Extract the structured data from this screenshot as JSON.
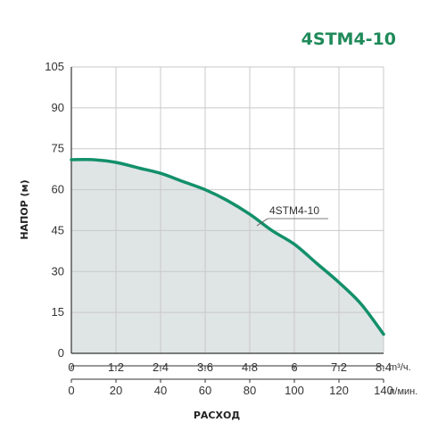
{
  "chart_data": {
    "type": "area",
    "title": "4STM4-10",
    "xlabel": "РАСХОД",
    "ylabel": "НАПОР (м)",
    "ylim": [
      0,
      105
    ],
    "yticks": [
      "0",
      "15",
      "30",
      "45",
      "60",
      "75",
      "90",
      "105"
    ],
    "x_axis_primary": {
      "unit": "m³/ч.",
      "range": [
        0,
        8.4
      ],
      "ticks": [
        "0",
        "1.2",
        "2.4",
        "3.6",
        "4.8",
        "6",
        "7.2",
        "8.4"
      ]
    },
    "x_axis_secondary": {
      "unit": "л/мин.",
      "range": [
        0,
        140
      ],
      "ticks": [
        "0",
        "20",
        "40",
        "60",
        "80",
        "100",
        "120",
        "140"
      ]
    },
    "grid": true,
    "series": [
      {
        "name": "4STM4-10",
        "color": "#12906a",
        "fill": "#dfe4e4",
        "x": [
          0,
          0.6,
          1.2,
          1.8,
          2.4,
          3.0,
          3.6,
          4.2,
          4.8,
          5.4,
          6.0,
          6.6,
          7.2,
          7.8,
          8.4
        ],
        "y": [
          71,
          71,
          70,
          68,
          66,
          63,
          60,
          56,
          51,
          45,
          40,
          33,
          26,
          18,
          7
        ]
      }
    ]
  }
}
